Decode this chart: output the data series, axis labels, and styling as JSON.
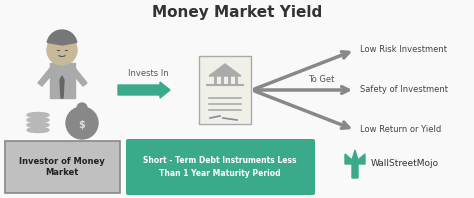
{
  "title": "Money Market Yield",
  "title_fontsize": 11,
  "title_color": "#333333",
  "bg_color": "#f9f9f9",
  "box1_text": "Investor of Money\nMarket",
  "box1_facecolor": "#c0c0c0",
  "box1_edgecolor": "#888888",
  "box1_text_color": "#222222",
  "box2_text": "Short - Term Debt Instruments Less\nThan 1 Year Maturity Period",
  "box2_color": "#3aaa8a",
  "box2_text_color": "#ffffff",
  "arrow_label": "Invests In",
  "arrow_color": "#3aaa8a",
  "to_get_label": "To Get",
  "outcomes": [
    "Low Risk Investment",
    "Safety of Investment",
    "Low Return or Yield"
  ],
  "outcome_color": "#444444",
  "arrow_outcomes_color": "#888888",
  "wsm_color": "#3aaa8a",
  "wsm_text": "WallStreetMojo",
  "doc_facecolor": "#f0efe8",
  "doc_edgecolor": "#aaaaaa",
  "person_skin": "#d4c4b0",
  "person_suit": "#aaaaaa",
  "person_head": "#c8b89a"
}
